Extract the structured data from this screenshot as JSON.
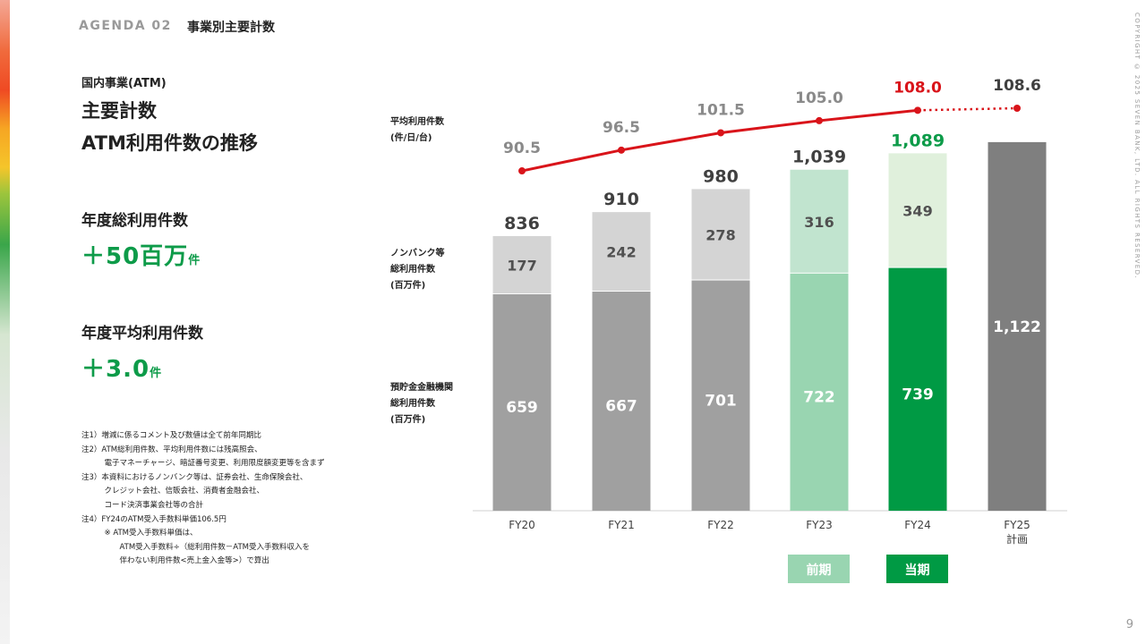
{
  "header": {
    "agenda": "AGENDA 02",
    "title": "事業別主要計数",
    "copyright": "COPYRIGHT © 2025  SEVEN BANK, LTD. ALL RIGHTS RESERVED."
  },
  "left": {
    "subtitle": "国内事業(ATM)",
    "title_line1": "主要計数",
    "title_line2": "ATM利用件数の推移",
    "kpi1_label": "年度総利用件数",
    "kpi1_value": "＋50百万",
    "kpi1_unit": "件",
    "kpi2_label": "年度平均利用件数",
    "kpi2_value": "＋3.0",
    "kpi2_unit": "件",
    "notes": [
      "注1）増減に係るコメント及び数値は全て前年同期比",
      "注2）ATM総利用件数、平均利用件数には残高照会、",
      "　　　電子マネーチャージ、暗証番号変更、利用限度額変更等を含まず",
      "注3）本資料におけるノンバンク等は、証券会社、生命保険会社、",
      "　　　クレジット会社、信販会社、消費者金融会社、",
      "　　　コード決済事業会社等の合計",
      "注4）FY24のATM受入手数料単価106.5円",
      "　　　※ ATM受入手数料単価は、",
      "　　　　　ATM受入手数料÷（総利用件数－ATM受入手数料収入を",
      "　　　　　伴わない利用件数<売上金入金等>）で算出"
    ]
  },
  "chart_data": {
    "type": "bar",
    "categories": [
      "FY20",
      "FY21",
      "FY22",
      "FY23",
      "FY24",
      "FY25\n計画"
    ],
    "series": [
      {
        "name": "預貯金金融機関総利用件数(百万件)",
        "values": [
          659,
          667,
          701,
          722,
          739,
          null
        ]
      },
      {
        "name": "ノンバンク等総利用件数(百万件)",
        "values": [
          177,
          242,
          278,
          316,
          349,
          null
        ]
      }
    ],
    "plan_total": 1122,
    "totals": [
      836,
      910,
      980,
      1039,
      1089,
      1122
    ],
    "line_series": {
      "name": "平均利用件数(件/日/台)",
      "values": [
        90.5,
        96.5,
        101.5,
        105.0,
        108.0,
        108.6
      ]
    },
    "series_labels": {
      "line": [
        "平均利用件数",
        "(件/日/台)"
      ],
      "nonbank": [
        "ノンバンク等",
        "総利用件数",
        "(百万件)"
      ],
      "bank": [
        "預貯金金融機関",
        "総利用件数",
        "(百万件)"
      ]
    },
    "legend": {
      "prev": "前期",
      "current": "当期"
    },
    "colors": {
      "bank": "#a0a0a0",
      "nonbank": "#d4d4d4",
      "bank_prev": "#99d5b1",
      "nonbank_prev": "#c1e4cf",
      "bank_cur": "#009a44",
      "nonbank_cur": "#e0f0dc",
      "plan": "#7f7f7f",
      "line": "#d9141a",
      "total_cur": "#0d9b49"
    }
  },
  "page_number": "9"
}
